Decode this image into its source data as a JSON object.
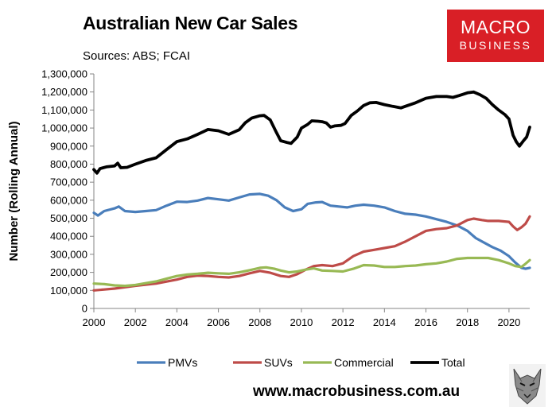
{
  "header": {
    "title": "Australian New Car Sales",
    "subtitle": "Sources: ABS; FCAI"
  },
  "logo": {
    "line1": "MACRO",
    "line2": "BUSINESS"
  },
  "footer": {
    "website": "www.macrobusiness.com.au"
  },
  "colors": {
    "PMVs": "#4a7ebb",
    "SUVs": "#be4b48",
    "Commercial": "#98b954",
    "Total": "#000000",
    "logo_bg": "#d91f26"
  },
  "chart_data": {
    "type": "line",
    "title": "Australian New Car Sales",
    "ylabel": "Number (Rolling Annual)",
    "xlabel": "",
    "xlim": [
      2000,
      2021
    ],
    "ylim": [
      0,
      1300000
    ],
    "x_ticks": [
      "2000",
      "2002",
      "2004",
      "2006",
      "2008",
      "2010",
      "2012",
      "2014",
      "2016",
      "2018",
      "2020"
    ],
    "y_ticks": [
      "0",
      "100,000",
      "200,000",
      "300,000",
      "400,000",
      "500,000",
      "600,000",
      "700,000",
      "800,000",
      "900,000",
      "1,000,000",
      "1,100,000",
      "1,200,000",
      "1,300,000"
    ],
    "grid": false,
    "legend": "bottom",
    "series": [
      {
        "name": "PMVs",
        "points": [
          [
            2000.0,
            530000
          ],
          [
            2000.2,
            515000
          ],
          [
            2000.5,
            540000
          ],
          [
            2001.0,
            555000
          ],
          [
            2001.2,
            565000
          ],
          [
            2001.5,
            540000
          ],
          [
            2002.0,
            535000
          ],
          [
            2002.5,
            540000
          ],
          [
            2003.0,
            545000
          ],
          [
            2003.5,
            570000
          ],
          [
            2004.0,
            592000
          ],
          [
            2004.5,
            590000
          ],
          [
            2005.0,
            598000
          ],
          [
            2005.5,
            612000
          ],
          [
            2006.0,
            605000
          ],
          [
            2006.5,
            598000
          ],
          [
            2007.0,
            615000
          ],
          [
            2007.5,
            632000
          ],
          [
            2008.0,
            635000
          ],
          [
            2008.4,
            625000
          ],
          [
            2008.8,
            600000
          ],
          [
            2009.2,
            560000
          ],
          [
            2009.6,
            540000
          ],
          [
            2010.0,
            550000
          ],
          [
            2010.3,
            580000
          ],
          [
            2010.7,
            588000
          ],
          [
            2011.0,
            590000
          ],
          [
            2011.4,
            570000
          ],
          [
            2011.8,
            565000
          ],
          [
            2012.2,
            560000
          ],
          [
            2012.6,
            570000
          ],
          [
            2013.0,
            575000
          ],
          [
            2013.5,
            570000
          ],
          [
            2014.0,
            560000
          ],
          [
            2014.5,
            540000
          ],
          [
            2015.0,
            525000
          ],
          [
            2015.5,
            520000
          ],
          [
            2016.0,
            510000
          ],
          [
            2016.5,
            495000
          ],
          [
            2017.0,
            480000
          ],
          [
            2017.5,
            460000
          ],
          [
            2018.0,
            430000
          ],
          [
            2018.4,
            390000
          ],
          [
            2018.8,
            365000
          ],
          [
            2019.2,
            340000
          ],
          [
            2019.6,
            320000
          ],
          [
            2020.0,
            290000
          ],
          [
            2020.3,
            255000
          ],
          [
            2020.6,
            225000
          ],
          [
            2020.8,
            220000
          ],
          [
            2021.0,
            225000
          ]
        ]
      },
      {
        "name": "SUVs",
        "points": [
          [
            2000.0,
            100000
          ],
          [
            2000.5,
            105000
          ],
          [
            2001.0,
            110000
          ],
          [
            2002.0,
            125000
          ],
          [
            2003.0,
            138000
          ],
          [
            2004.0,
            160000
          ],
          [
            2004.5,
            175000
          ],
          [
            2005.0,
            182000
          ],
          [
            2005.5,
            180000
          ],
          [
            2006.0,
            175000
          ],
          [
            2006.5,
            172000
          ],
          [
            2007.0,
            180000
          ],
          [
            2007.5,
            195000
          ],
          [
            2008.0,
            208000
          ],
          [
            2008.5,
            198000
          ],
          [
            2009.0,
            180000
          ],
          [
            2009.4,
            175000
          ],
          [
            2009.8,
            190000
          ],
          [
            2010.2,
            215000
          ],
          [
            2010.6,
            235000
          ],
          [
            2011.0,
            240000
          ],
          [
            2011.5,
            235000
          ],
          [
            2012.0,
            250000
          ],
          [
            2012.5,
            290000
          ],
          [
            2013.0,
            315000
          ],
          [
            2013.5,
            325000
          ],
          [
            2014.0,
            335000
          ],
          [
            2014.5,
            345000
          ],
          [
            2015.0,
            370000
          ],
          [
            2015.5,
            400000
          ],
          [
            2016.0,
            430000
          ],
          [
            2016.5,
            440000
          ],
          [
            2017.0,
            445000
          ],
          [
            2017.5,
            460000
          ],
          [
            2018.0,
            490000
          ],
          [
            2018.3,
            498000
          ],
          [
            2018.7,
            490000
          ],
          [
            2019.0,
            485000
          ],
          [
            2019.5,
            485000
          ],
          [
            2020.0,
            480000
          ],
          [
            2020.2,
            455000
          ],
          [
            2020.4,
            435000
          ],
          [
            2020.6,
            450000
          ],
          [
            2020.8,
            470000
          ],
          [
            2021.0,
            510000
          ]
        ]
      },
      {
        "name": "Commercial",
        "points": [
          [
            2000.0,
            138000
          ],
          [
            2000.5,
            135000
          ],
          [
            2001.0,
            128000
          ],
          [
            2001.5,
            125000
          ],
          [
            2002.0,
            130000
          ],
          [
            2002.5,
            140000
          ],
          [
            2003.0,
            150000
          ],
          [
            2003.5,
            165000
          ],
          [
            2004.0,
            180000
          ],
          [
            2004.5,
            188000
          ],
          [
            2005.0,
            192000
          ],
          [
            2005.5,
            198000
          ],
          [
            2006.0,
            195000
          ],
          [
            2006.5,
            192000
          ],
          [
            2007.0,
            200000
          ],
          [
            2007.5,
            212000
          ],
          [
            2008.0,
            225000
          ],
          [
            2008.3,
            228000
          ],
          [
            2008.7,
            220000
          ],
          [
            2009.0,
            210000
          ],
          [
            2009.4,
            200000
          ],
          [
            2009.8,
            205000
          ],
          [
            2010.2,
            215000
          ],
          [
            2010.6,
            222000
          ],
          [
            2011.0,
            210000
          ],
          [
            2011.5,
            208000
          ],
          [
            2012.0,
            205000
          ],
          [
            2012.5,
            220000
          ],
          [
            2013.0,
            240000
          ],
          [
            2013.5,
            238000
          ],
          [
            2014.0,
            230000
          ],
          [
            2014.5,
            230000
          ],
          [
            2015.0,
            235000
          ],
          [
            2015.5,
            238000
          ],
          [
            2016.0,
            245000
          ],
          [
            2016.5,
            250000
          ],
          [
            2017.0,
            260000
          ],
          [
            2017.5,
            275000
          ],
          [
            2018.0,
            280000
          ],
          [
            2018.5,
            280000
          ],
          [
            2019.0,
            280000
          ],
          [
            2019.5,
            268000
          ],
          [
            2020.0,
            250000
          ],
          [
            2020.3,
            235000
          ],
          [
            2020.6,
            230000
          ],
          [
            2020.8,
            248000
          ],
          [
            2021.0,
            268000
          ]
        ]
      },
      {
        "name": "Total",
        "points": [
          [
            2000.0,
            770000
          ],
          [
            2000.15,
            750000
          ],
          [
            2000.3,
            775000
          ],
          [
            2000.6,
            785000
          ],
          [
            2001.0,
            790000
          ],
          [
            2001.15,
            805000
          ],
          [
            2001.3,
            780000
          ],
          [
            2001.6,
            782000
          ],
          [
            2002.0,
            800000
          ],
          [
            2002.5,
            820000
          ],
          [
            2003.0,
            835000
          ],
          [
            2003.5,
            880000
          ],
          [
            2004.0,
            925000
          ],
          [
            2004.5,
            940000
          ],
          [
            2005.0,
            965000
          ],
          [
            2005.5,
            992000
          ],
          [
            2006.0,
            985000
          ],
          [
            2006.5,
            965000
          ],
          [
            2007.0,
            990000
          ],
          [
            2007.3,
            1030000
          ],
          [
            2007.6,
            1055000
          ],
          [
            2008.0,
            1068000
          ],
          [
            2008.2,
            1070000
          ],
          [
            2008.5,
            1045000
          ],
          [
            2008.8,
            975000
          ],
          [
            2009.0,
            930000
          ],
          [
            2009.3,
            920000
          ],
          [
            2009.5,
            915000
          ],
          [
            2009.8,
            950000
          ],
          [
            2010.0,
            1000000
          ],
          [
            2010.3,
            1020000
          ],
          [
            2010.5,
            1040000
          ],
          [
            2010.8,
            1038000
          ],
          [
            2011.0,
            1035000
          ],
          [
            2011.2,
            1028000
          ],
          [
            2011.4,
            1005000
          ],
          [
            2011.6,
            1012000
          ],
          [
            2011.9,
            1015000
          ],
          [
            2012.1,
            1025000
          ],
          [
            2012.4,
            1070000
          ],
          [
            2012.7,
            1095000
          ],
          [
            2013.0,
            1125000
          ],
          [
            2013.3,
            1140000
          ],
          [
            2013.6,
            1142000
          ],
          [
            2014.0,
            1130000
          ],
          [
            2014.4,
            1120000
          ],
          [
            2014.8,
            1112000
          ],
          [
            2015.0,
            1120000
          ],
          [
            2015.5,
            1140000
          ],
          [
            2016.0,
            1165000
          ],
          [
            2016.5,
            1175000
          ],
          [
            2017.0,
            1175000
          ],
          [
            2017.3,
            1170000
          ],
          [
            2017.6,
            1180000
          ],
          [
            2018.0,
            1195000
          ],
          [
            2018.3,
            1200000
          ],
          [
            2018.6,
            1185000
          ],
          [
            2018.9,
            1165000
          ],
          [
            2019.2,
            1130000
          ],
          [
            2019.5,
            1100000
          ],
          [
            2019.8,
            1075000
          ],
          [
            2020.0,
            1050000
          ],
          [
            2020.2,
            960000
          ],
          [
            2020.35,
            925000
          ],
          [
            2020.5,
            900000
          ],
          [
            2020.7,
            930000
          ],
          [
            2020.85,
            950000
          ],
          [
            2021.0,
            1005000
          ]
        ]
      }
    ]
  }
}
